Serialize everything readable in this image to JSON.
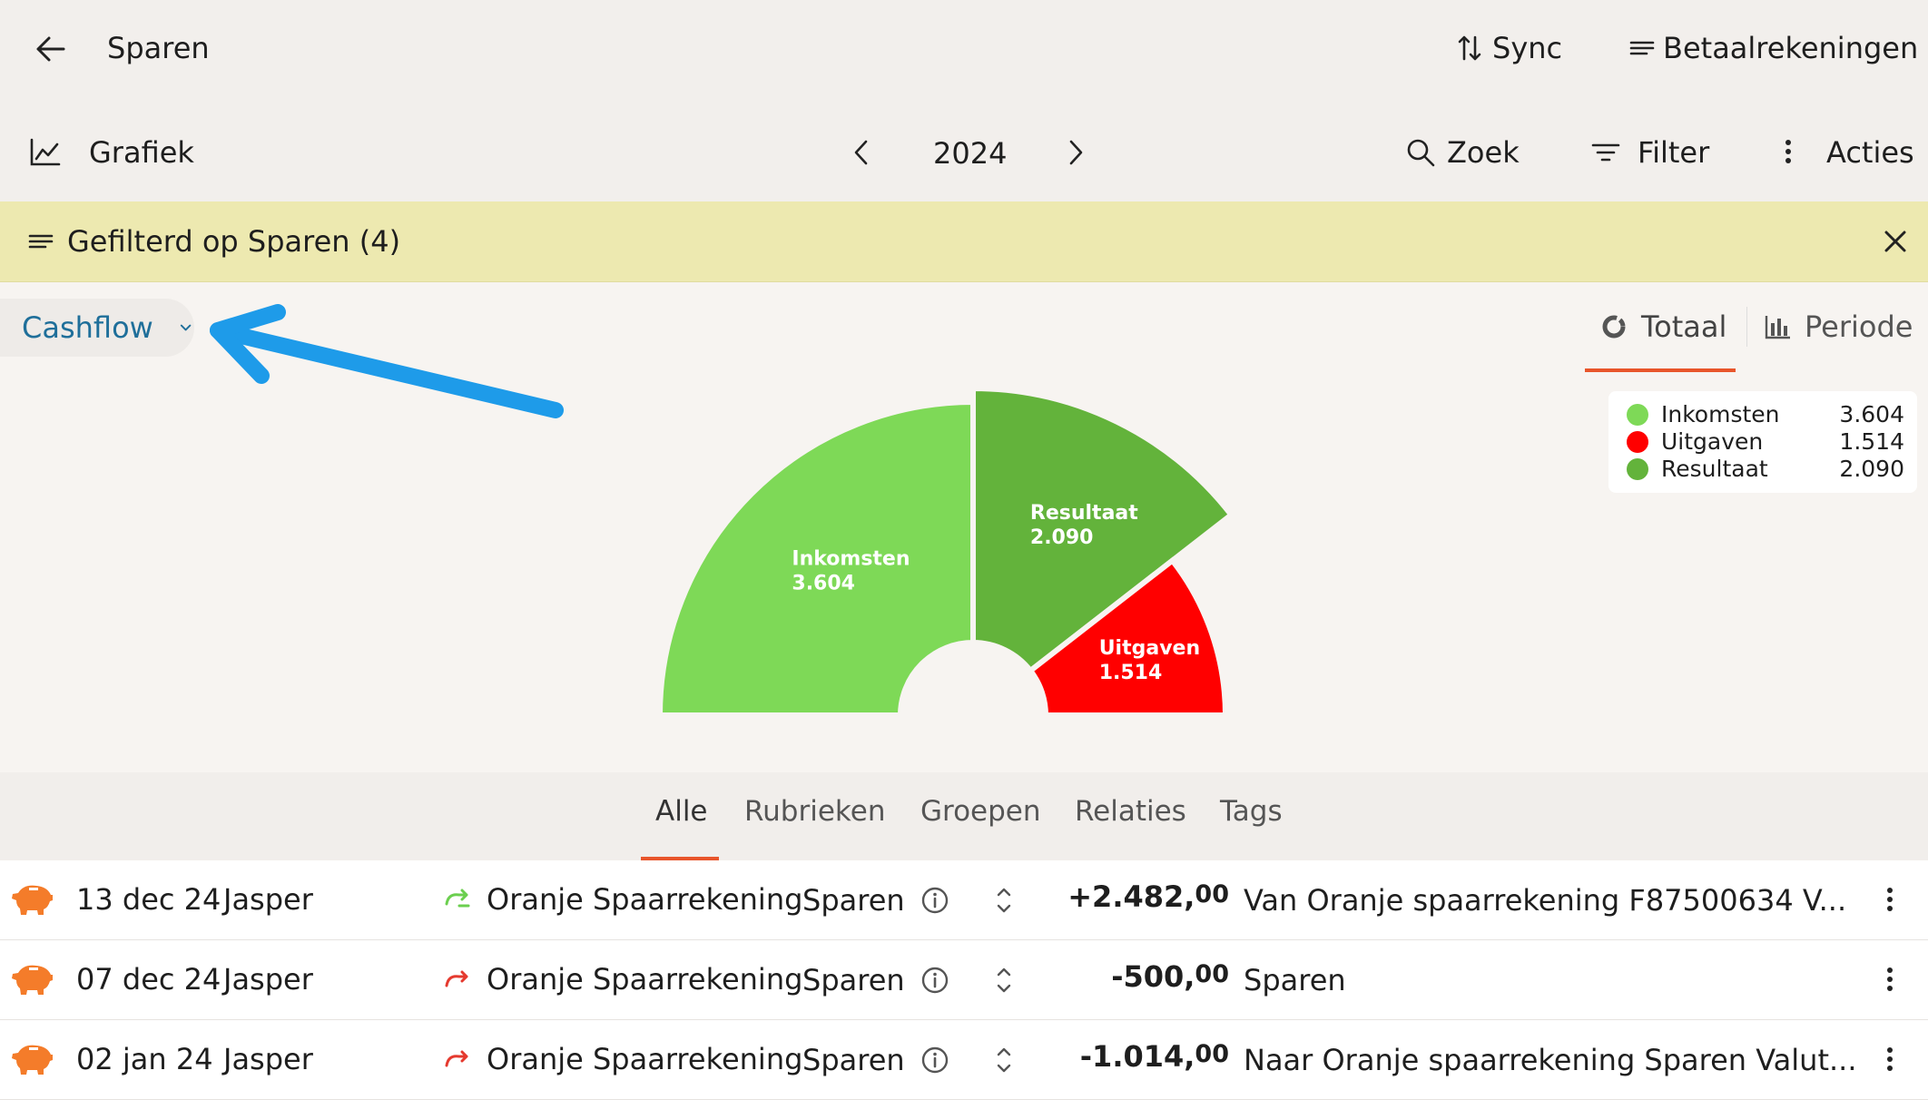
{
  "header": {
    "title": "Sparen",
    "sync_label": "Sync",
    "accounts_label": "Betaalrekeningen"
  },
  "toolbar": {
    "chart_label": "Grafiek",
    "year": "2024",
    "search_label": "Zoek",
    "filter_label": "Filter",
    "actions_label": "Acties"
  },
  "filter_banner": {
    "text": "Gefilterd op Sparen (4)"
  },
  "chart_controls": {
    "dropdown_label": "Cashflow",
    "view_total": "Totaal",
    "view_period": "Periode"
  },
  "legend": [
    {
      "label": "Inkomsten",
      "value": "3.604",
      "color": "#7ed957"
    },
    {
      "label": "Uitgaven",
      "value": "1.514",
      "color": "#ff0000"
    },
    {
      "label": "Resultaat",
      "value": "2.090",
      "color": "#63b33b"
    }
  ],
  "chart_data": {
    "type": "pie",
    "variant": "half-donut",
    "slices": [
      {
        "label": "Inkomsten",
        "value": 3604,
        "display": "3.604",
        "color": "#7ed957"
      },
      {
        "label": "Resultaat",
        "value": 2090,
        "display": "2.090",
        "color": "#63b33b"
      },
      {
        "label": "Uitgaven",
        "value": 1514,
        "display": "1.514",
        "color": "#ff0000"
      }
    ]
  },
  "tabs": [
    {
      "label": "Alle",
      "active": true
    },
    {
      "label": "Rubrieken",
      "active": false
    },
    {
      "label": "Groepen",
      "active": false
    },
    {
      "label": "Relaties",
      "active": false
    },
    {
      "label": "Tags",
      "active": false
    }
  ],
  "transactions": [
    {
      "date": "13 dec 24",
      "person": "Jasper",
      "account": "Oranje Spaarrekening",
      "category": "Sparen",
      "amount_main": "+2.482,",
      "amount_cents": "00",
      "direction": "in",
      "description": "Van Oranje spaarrekening F87500634 V..."
    },
    {
      "date": "07 dec 24",
      "person": "Jasper",
      "account": "Oranje Spaarrekening",
      "category": "Sparen",
      "amount_main": "-500,",
      "amount_cents": "00",
      "direction": "out",
      "description": "Sparen"
    },
    {
      "date": "02 jan 24",
      "person": "Jasper",
      "account": "Oranje Spaarrekening",
      "category": "Sparen",
      "amount_main": "-1.014,",
      "amount_cents": "00",
      "direction": "out",
      "description": "Naar Oranje spaarrekening Sparen Valut..."
    }
  ],
  "colors": {
    "accent": "#e8552b",
    "link": "#1f6f9a",
    "banner": "#ede9b0",
    "arrow": "#1e9be9",
    "in_arrow": "#6bcf4f",
    "out_arrow": "#e53a2f",
    "piggy": "#f47c2a"
  }
}
